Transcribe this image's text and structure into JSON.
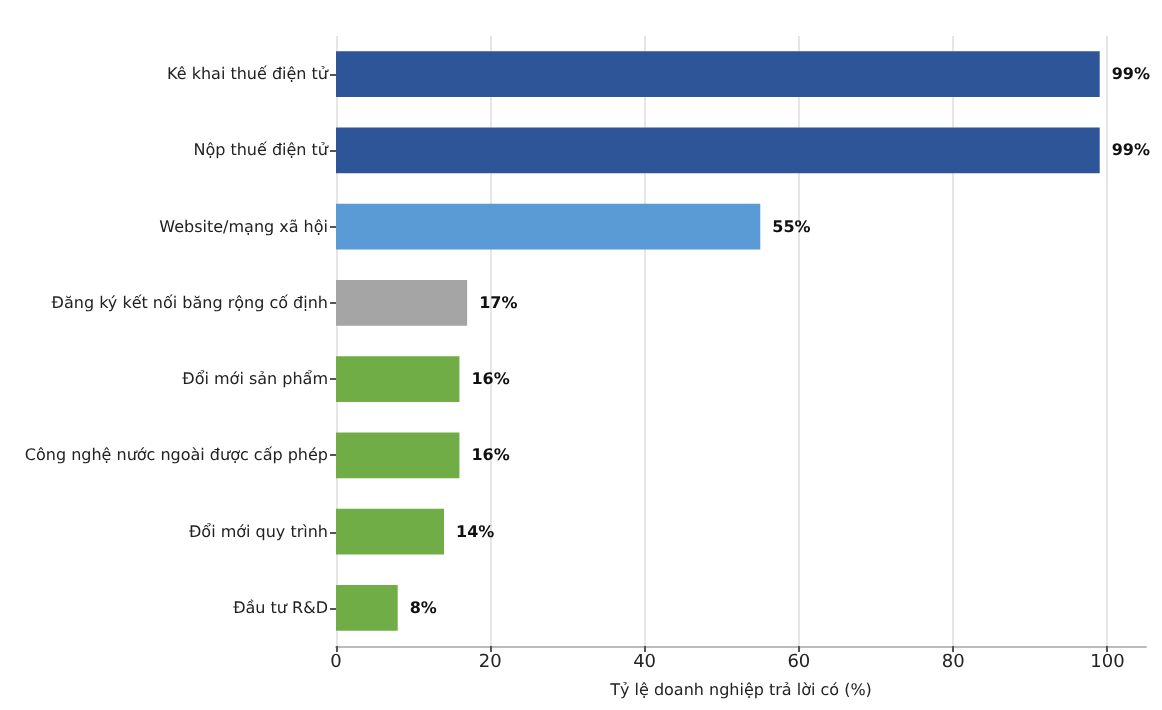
{
  "chart_data": {
    "type": "bar",
    "orientation": "horizontal",
    "categories": [
      "Kê khai thuế điện tử",
      "Nộp thuế điện tử",
      "Website/mạng xã hội",
      "Đăng ký kết nối băng rộng cố định",
      "Đổi mới sản phẩm",
      "Công nghệ nước ngoài được cấp phép",
      "Đổi mới quy trình",
      "Đầu tư R&D"
    ],
    "values": [
      99,
      99,
      55,
      17,
      16,
      16,
      14,
      8
    ],
    "colors": [
      "#2e5597",
      "#2e5597",
      "#5b9bd5",
      "#a5a5a5",
      "#70ad47",
      "#70ad47",
      "#70ad47",
      "#70ad47"
    ],
    "value_labels": [
      "99%",
      "99%",
      "55%",
      "17%",
      "16%",
      "16%",
      "14%",
      "8%"
    ],
    "xlabel": "Tỷ lệ doanh nghiệp trả lời có (%)",
    "xlim": [
      0,
      105
    ],
    "xticks": [
      0,
      20,
      40,
      60,
      80,
      100
    ],
    "grid": "x"
  }
}
